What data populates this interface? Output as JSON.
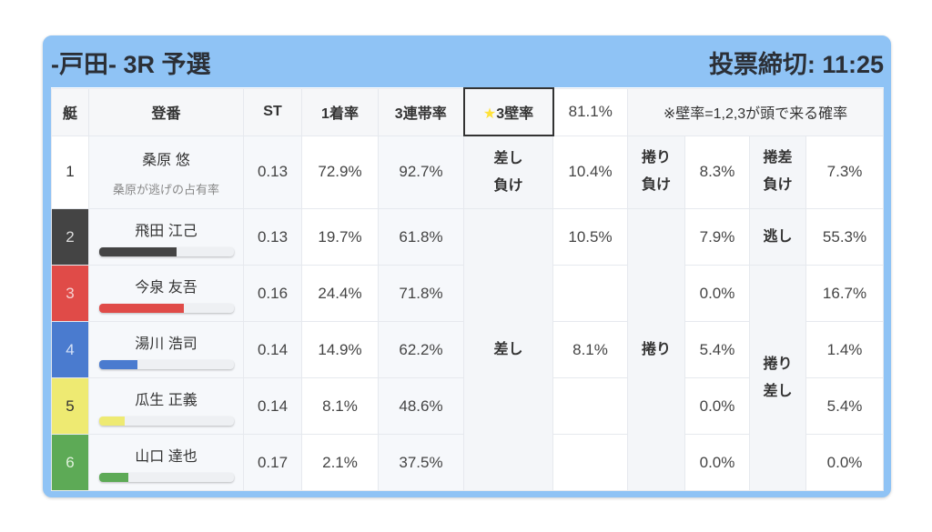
{
  "header": {
    "title": "-戸田- 3R 予選",
    "deadline": "投票締切: 11:25"
  },
  "table": {
    "columns": [
      "艇",
      "登番",
      "ST",
      "1着率",
      "3連帯率"
    ],
    "wall": {
      "star": "★",
      "label": "3壁率",
      "value": "81.1%",
      "note": "※壁率=1,2,3が頭で来る確率"
    },
    "boats": [
      {
        "num": "1",
        "name": "桑原 悠",
        "sub": "桑原が逃げの占有率",
        "st": "0.13",
        "win": "72.9%",
        "top3": "92.7%",
        "color": "#ffffff",
        "text_color": "#333333"
      },
      {
        "num": "2",
        "name": "飛田 江己",
        "st": "0.13",
        "win": "19.7%",
        "top3": "61.8%",
        "color": "#444444",
        "text_color": "#dddddd",
        "bar": 0.58
      },
      {
        "num": "3",
        "name": "今泉 友吾",
        "st": "0.16",
        "win": "24.4%",
        "top3": "71.8%",
        "color": "#e04b48",
        "text_color": "#f5d0d0",
        "bar": 0.63
      },
      {
        "num": "4",
        "name": "湯川 浩司",
        "st": "0.14",
        "win": "14.9%",
        "top3": "62.2%",
        "color": "#4a7bcf",
        "text_color": "#d5e2f7",
        "bar": 0.29
      },
      {
        "num": "5",
        "name": "瓜生 正義",
        "st": "0.14",
        "win": "8.1%",
        "top3": "48.6%",
        "color": "#eeea72",
        "text_color": "#333333",
        "bar": 0.19
      },
      {
        "num": "6",
        "name": "山口 達也",
        "st": "0.17",
        "win": "2.1%",
        "top3": "37.5%",
        "color": "#5daa56",
        "text_color": "#e0f2dc",
        "bar": 0.22
      }
    ],
    "row1_stats": [
      {
        "label": "差し負け",
        "label_lines": [
          "差し",
          "負け"
        ],
        "value": "10.4%"
      },
      {
        "label_lines": [
          "捲り",
          "負け"
        ],
        "value": "8.3%"
      },
      {
        "label_lines": [
          "捲差",
          "負け"
        ],
        "value": "7.3%"
      }
    ],
    "sashi": {
      "label": "差し",
      "values": [
        "10.5%",
        "",
        "8.1%",
        "",
        ""
      ]
    },
    "makuri": {
      "label": "捲り",
      "values": [
        "7.9%",
        "0.0%",
        "5.4%",
        "0.0%",
        "0.0%"
      ]
    },
    "nige": {
      "label": "逃し",
      "value": "55.3%"
    },
    "makurisashi": {
      "label_lines": [
        "捲り",
        "差し"
      ],
      "values": [
        "16.7%",
        "1.4%",
        "5.4%",
        "0.0%"
      ]
    }
  }
}
